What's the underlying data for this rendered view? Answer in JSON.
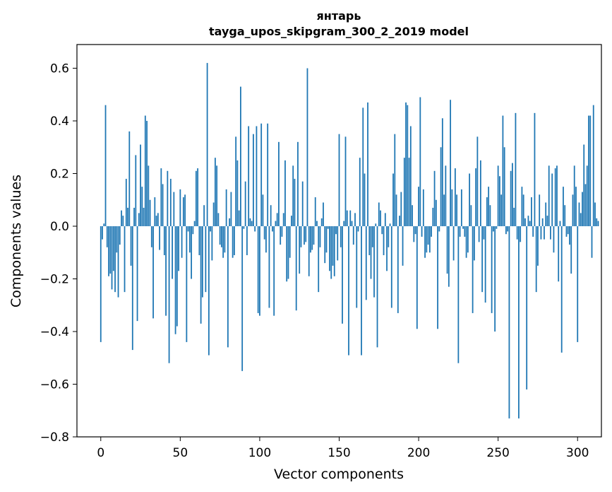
{
  "chart_data": {
    "type": "bar",
    "title": "янтарь",
    "subtitle": "tayga_upos_skipgram_300_2_2019 model",
    "xlabel": "Vector components",
    "ylabel": "Components values",
    "xlim": [
      -15,
      315
    ],
    "ylim": [
      -0.8,
      0.69
    ],
    "xticks": [
      0,
      50,
      100,
      150,
      200,
      250,
      300
    ],
    "yticks": [
      -0.8,
      -0.6,
      -0.4,
      -0.2,
      0.0,
      0.2,
      0.4,
      0.6
    ],
    "ytick_labels": [
      "−0.8",
      "−0.6",
      "−0.4",
      "−0.2",
      "0.0",
      "0.2",
      "0.4",
      "0.6"
    ],
    "bar_color": "#1f77b4",
    "grid": false,
    "values": [
      -0.44,
      -0.05,
      0.01,
      0.46,
      -0.08,
      -0.19,
      -0.18,
      -0.24,
      -0.17,
      -0.25,
      -0.1,
      -0.27,
      -0.07,
      0.06,
      0.04,
      -0.25,
      0.18,
      0.07,
      0.36,
      -0.15,
      -0.47,
      0.07,
      0.27,
      -0.36,
      0.05,
      0.31,
      0.15,
      0.07,
      0.42,
      0.4,
      0.23,
      0.1,
      -0.08,
      -0.35,
      0.11,
      0.04,
      0.05,
      -0.09,
      0.22,
      0.16,
      -0.11,
      -0.34,
      0.21,
      -0.52,
      0.18,
      -0.2,
      0.13,
      -0.41,
      -0.38,
      -0.17,
      0.14,
      -0.12,
      0.11,
      0.12,
      -0.44,
      -0.02,
      -0.1,
      -0.2,
      -0.03,
      0.02,
      0.21,
      0.22,
      -0.11,
      -0.37,
      -0.27,
      0.08,
      -0.25,
      0.62,
      -0.49,
      -0.02,
      -0.13,
      0.09,
      0.26,
      0.23,
      0.05,
      -0.07,
      -0.08,
      -0.12,
      -0.1,
      0.14,
      -0.46,
      0.03,
      0.13,
      -0.12,
      -0.11,
      0.34,
      0.25,
      0.06,
      0.53,
      -0.55,
      -0.01,
      0.17,
      -0.11,
      0.38,
      0.03,
      0.02,
      0.35,
      -0.02,
      0.38,
      -0.33,
      -0.34,
      0.39,
      0.12,
      -0.05,
      -0.1,
      0.39,
      -0.31,
      0.08,
      -0.02,
      -0.34,
      0.02,
      0.05,
      0.32,
      -0.07,
      -0.04,
      0.05,
      0.25,
      -0.21,
      -0.2,
      -0.12,
      0.04,
      0.23,
      0.18,
      -0.32,
      0.32,
      -0.18,
      -0.08,
      0.17,
      -0.07,
      -0.06,
      0.6,
      -0.19,
      -0.1,
      -0.09,
      -0.07,
      0.11,
      0.02,
      -0.25,
      -0.08,
      0.03,
      0.09,
      -0.14,
      -0.1,
      -0.01,
      -0.17,
      -0.2,
      -0.15,
      -0.19,
      -0.03,
      -0.13,
      0.35,
      -0.08,
      -0.37,
      0.02,
      0.34,
      0.06,
      -0.49,
      0.06,
      0.02,
      -0.07,
      0.05,
      -0.31,
      -0.02,
      0.26,
      -0.49,
      0.45,
      0.2,
      -0.28,
      0.47,
      -0.11,
      -0.2,
      -0.08,
      -0.27,
      0.01,
      -0.46,
      0.09,
      0.06,
      -0.03,
      -0.11,
      0.05,
      -0.17,
      -0.08,
      0.01,
      -0.31,
      0.2,
      0.35,
      0.12,
      -0.33,
      0.04,
      0.13,
      -0.15,
      0.26,
      0.47,
      0.46,
      0.26,
      0.38,
      0.08,
      -0.06,
      -0.03,
      -0.39,
      0.15,
      0.49,
      -0.04,
      0.14,
      -0.12,
      -0.1,
      -0.07,
      -0.1,
      -0.04,
      0.07,
      0.21,
      0.1,
      -0.39,
      -0.02,
      0.3,
      0.41,
      0.12,
      0.23,
      -0.18,
      -0.23,
      0.48,
      0.14,
      -0.13,
      0.22,
      0.12,
      -0.52,
      -0.04,
      0.14,
      -0.01,
      -0.04,
      -0.12,
      -0.1,
      0.2,
      0.08,
      -0.33,
      -0.13,
      0.22,
      0.34,
      -0.06,
      0.25,
      -0.25,
      -0.05,
      -0.29,
      0.11,
      0.15,
      0.08,
      -0.33,
      -0.02,
      -0.4,
      -0.01,
      0.23,
      0.19,
      0.12,
      0.42,
      0.3,
      -0.03,
      -0.02,
      -0.73,
      0.21,
      0.24,
      0.07,
      0.43,
      -0.05,
      -0.73,
      -0.06,
      0.15,
      0.12,
      0.03,
      -0.62,
      0.04,
      0.02,
      0.11,
      -0.04,
      0.43,
      -0.25,
      -0.15,
      0.12,
      -0.05,
      0.03,
      -0.05,
      0.09,
      0.04,
      0.23,
      -0.05,
      0.2,
      -0.1,
      0.22,
      0.23,
      -0.21,
      0.02,
      -0.48,
      0.15,
      0.08,
      -0.04,
      -0.03,
      -0.07,
      -0.18,
      0.12,
      0.23,
      0.15,
      -0.44,
      0.09,
      0.05,
      0.13,
      0.31,
      0.16,
      0.23,
      0.42,
      0.42,
      -0.12,
      0.46,
      0.09,
      0.03,
      0.02
    ]
  }
}
